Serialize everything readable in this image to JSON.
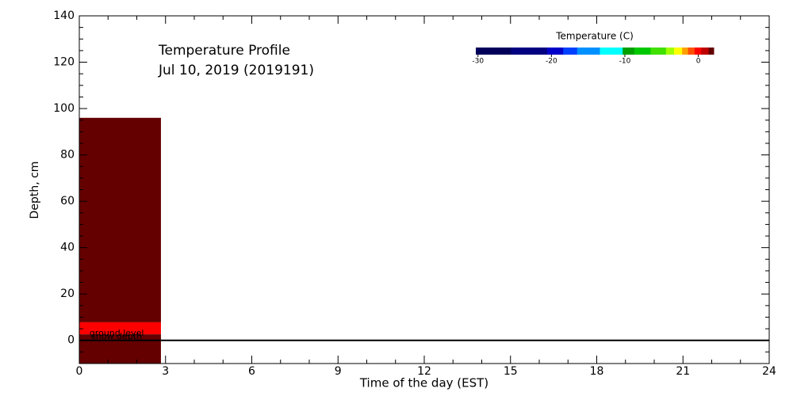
{
  "chart_data": {
    "type": "heatmap",
    "title": "Temperature Profile",
    "subtitle": "Jul 10, 2019 (2019191)",
    "x_label": "Time of the day (EST)",
    "y_label": "Depth, cm",
    "xlim": [
      0,
      24
    ],
    "ylim": [
      -10,
      140
    ],
    "xticks": [
      0,
      3,
      6,
      9,
      12,
      15,
      18,
      21,
      24
    ],
    "yticks": [
      0,
      20,
      40,
      60,
      80,
      100,
      120,
      140
    ],
    "xticks_minor": [
      1,
      2,
      4,
      5,
      7,
      8,
      10,
      11,
      13,
      14,
      16,
      17,
      19,
      20,
      22,
      23
    ],
    "yticks_minor": [
      -5,
      5,
      10,
      15,
      25,
      30,
      35,
      45,
      50,
      55,
      65,
      70,
      75,
      85,
      90,
      95,
      105,
      110,
      115,
      125,
      130,
      135
    ],
    "cells": [
      {
        "x": [
          0,
          2.84
        ],
        "y": [
          7.8,
          96
        ],
        "value": 1.8
      },
      {
        "x": [
          0,
          2.84
        ],
        "y": [
          2.6,
          7.8
        ],
        "value": 0
      },
      {
        "x": [
          0,
          2.84
        ],
        "y": [
          -10,
          2.6
        ],
        "value": 1.8
      }
    ],
    "ground_line": 0,
    "annotations": [
      {
        "text": "ground level",
        "x": 1.3,
        "y": 2.9
      },
      {
        "text": "snow depth",
        "x": 1.3,
        "y": 1.6
      }
    ],
    "colorbar": {
      "label": "Temperature (C)",
      "clim": [
        -30.3,
        2.1
      ],
      "ticks": [
        -30,
        -20,
        -10,
        0
      ],
      "bounds": [
        -30.3,
        -25.5,
        -20.6,
        -18.4,
        -16.5,
        -13.4,
        -10.3,
        -8.7,
        -6.5,
        -4.4,
        -3.3,
        -2.2,
        -1.4,
        -0.5,
        0.4,
        1.4,
        2.1
      ],
      "colors": [
        "#00005a",
        "#000080",
        "#0000c8",
        "#0040ff",
        "#0090ff",
        "#00ffff",
        "#00a000",
        "#00c800",
        "#40e000",
        "#a0ff00",
        "#ffff00",
        "#ffa000",
        "#ff5000",
        "#ff0000",
        "#c00000",
        "#640000"
      ]
    }
  }
}
